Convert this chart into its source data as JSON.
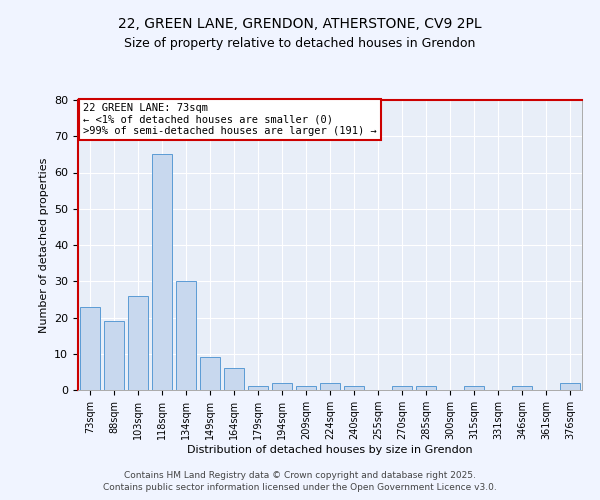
{
  "title1": "22, GREEN LANE, GRENDON, ATHERSTONE, CV9 2PL",
  "title2": "Size of property relative to detached houses in Grendon",
  "xlabel": "Distribution of detached houses by size in Grendon",
  "ylabel": "Number of detached properties",
  "categories": [
    "73sqm",
    "88sqm",
    "103sqm",
    "118sqm",
    "134sqm",
    "149sqm",
    "164sqm",
    "179sqm",
    "194sqm",
    "209sqm",
    "224sqm",
    "240sqm",
    "255sqm",
    "270sqm",
    "285sqm",
    "300sqm",
    "315sqm",
    "331sqm",
    "346sqm",
    "361sqm",
    "376sqm"
  ],
  "values": [
    23,
    19,
    26,
    65,
    30,
    9,
    6,
    1,
    2,
    1,
    2,
    1,
    0,
    1,
    1,
    0,
    1,
    0,
    1,
    0,
    2
  ],
  "bar_color": "#c8d8ee",
  "bar_edge_color": "#5b9bd5",
  "bg_color": "#e8eef8",
  "grid_color": "#ffffff",
  "annotation_text_line1": "22 GREEN LANE: 73sqm",
  "annotation_text_line2": "← <1% of detached houses are smaller (0)",
  "annotation_text_line3": ">99% of semi-detached houses are larger (191) →",
  "annotation_box_edge": "#cc0000",
  "ylim": [
    0,
    80
  ],
  "yticks": [
    0,
    10,
    20,
    30,
    40,
    50,
    60,
    70,
    80
  ],
  "footer1": "Contains HM Land Registry data © Crown copyright and database right 2025.",
  "footer2": "Contains public sector information licensed under the Open Government Licence v3.0.",
  "red_spine_color": "#cc0000",
  "normal_spine_color": "#aaaaaa"
}
